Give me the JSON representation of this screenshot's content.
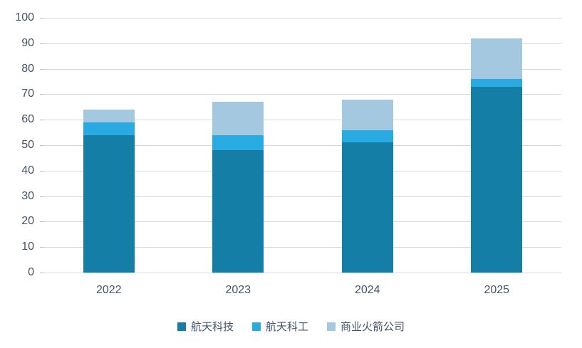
{
  "chart_data": {
    "type": "bar",
    "subtype": "stacked",
    "title": "",
    "xlabel": "",
    "ylabel": "",
    "categories": [
      "2022",
      "2023",
      "2024",
      "2025"
    ],
    "series": [
      {
        "name": "航天科技",
        "color": "#147ea6",
        "values": [
          54,
          48,
          51,
          73
        ]
      },
      {
        "name": "航天科工",
        "color": "#29aae1",
        "values": [
          5,
          6,
          5,
          3
        ]
      },
      {
        "name": "商业火箭公司",
        "color": "#a5c8e1",
        "values": [
          5,
          13,
          12,
          16
        ]
      }
    ],
    "totals": [
      64,
      67,
      68,
      92
    ],
    "ylim": [
      0,
      100
    ],
    "yticks": [
      0,
      10,
      20,
      30,
      40,
      50,
      60,
      70,
      80,
      90,
      100
    ],
    "grid": "horizontal",
    "gridline_color": "#d9d9d9",
    "axis_text_color": "#44546a",
    "legend_position": "bottom"
  }
}
